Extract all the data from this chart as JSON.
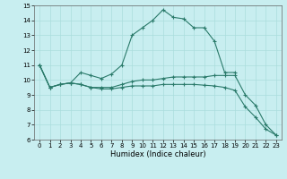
{
  "xlabel": "Humidex (Indice chaleur)",
  "xlim": [
    -0.5,
    23.5
  ],
  "ylim": [
    6,
    15
  ],
  "yticks": [
    6,
    7,
    8,
    9,
    10,
    11,
    12,
    13,
    14,
    15
  ],
  "xticks": [
    0,
    1,
    2,
    3,
    4,
    5,
    6,
    7,
    8,
    9,
    10,
    11,
    12,
    13,
    14,
    15,
    16,
    17,
    18,
    19,
    20,
    21,
    22,
    23
  ],
  "line_color": "#2a7a6a",
  "bg_color": "#c8eef0",
  "grid_color": "#aadddd",
  "lines": [
    {
      "x": [
        0,
        1,
        2,
        3,
        4,
        5,
        6,
        7,
        8,
        9,
        10,
        11,
        12,
        13,
        14,
        15,
        16,
        17,
        18,
        19
      ],
      "y": [
        11.0,
        9.5,
        9.7,
        9.8,
        10.5,
        10.3,
        10.1,
        10.4,
        11.0,
        13.0,
        13.5,
        14.0,
        14.7,
        14.2,
        14.1,
        13.5,
        13.5,
        12.6,
        10.5,
        10.5
      ]
    },
    {
      "x": [
        0,
        1,
        2,
        3,
        4,
        5,
        6,
        7,
        8,
        9,
        10,
        11,
        12,
        13,
        14,
        15,
        16,
        17,
        18,
        19,
        20,
        21,
        22,
        23
      ],
      "y": [
        11.0,
        9.5,
        9.7,
        9.8,
        9.7,
        9.5,
        9.5,
        9.5,
        9.7,
        9.9,
        10.0,
        10.0,
        10.1,
        10.2,
        10.2,
        10.2,
        10.2,
        10.3,
        10.3,
        10.3,
        9.0,
        8.3,
        7.0,
        6.3
      ]
    },
    {
      "x": [
        0,
        1,
        2,
        3,
        4,
        5,
        6,
        7,
        8,
        9,
        10,
        11,
        12,
        13,
        14,
        15,
        16,
        17,
        18,
        19,
        20,
        21,
        22,
        23
      ],
      "y": [
        11.0,
        9.5,
        9.7,
        9.8,
        9.7,
        9.5,
        9.4,
        9.4,
        9.5,
        9.6,
        9.6,
        9.6,
        9.7,
        9.7,
        9.7,
        9.7,
        9.65,
        9.6,
        9.5,
        9.3,
        8.2,
        7.5,
        6.7,
        6.3
      ]
    }
  ]
}
